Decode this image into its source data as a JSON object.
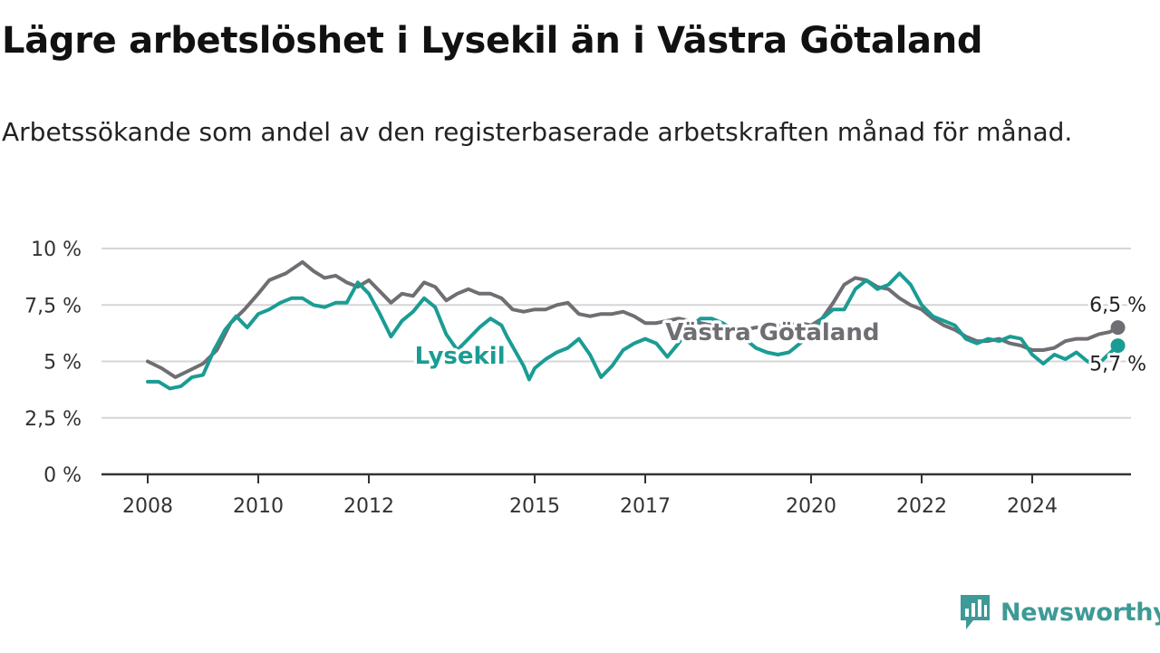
{
  "title": "Lägre arbetslöshet i Lysekil än i Västra Götaland",
  "subtitle": "Arbetssökande som andel av den registerbaserade arbetskraften månad för månad.",
  "brand": {
    "name": "Newsworthy",
    "color": "#3e9a96"
  },
  "chart_data": {
    "type": "line",
    "x_unit": "year",
    "y_unit": "percent",
    "ylim": [
      0,
      10
    ],
    "xlim": [
      2008,
      2025.7
    ],
    "y_ticks": [
      0,
      2.5,
      5,
      7.5,
      10
    ],
    "y_tick_labels": [
      "0 %",
      "2,5 %",
      "5 %",
      "7,5 %",
      "10 %"
    ],
    "x_ticks": [
      2008,
      2010,
      2012,
      2015,
      2017,
      2020,
      2022,
      2024
    ],
    "x_tick_labels": [
      "2008",
      "2010",
      "2012",
      "2015",
      "2017",
      "2020",
      "2022",
      "2024"
    ],
    "grid": "horizontal",
    "series": [
      {
        "name": "Västra Götaland",
        "color": "#6e6e73",
        "end_label": "6,5 %",
        "points": [
          [
            2008.0,
            5.0
          ],
          [
            2008.25,
            4.7
          ],
          [
            2008.5,
            4.3
          ],
          [
            2008.75,
            4.6
          ],
          [
            2009.0,
            4.9
          ],
          [
            2009.25,
            5.5
          ],
          [
            2009.5,
            6.7
          ],
          [
            2009.75,
            7.3
          ],
          [
            2010.0,
            8.0
          ],
          [
            2010.2,
            8.6
          ],
          [
            2010.5,
            8.9
          ],
          [
            2010.8,
            9.4
          ],
          [
            2011.0,
            9.0
          ],
          [
            2011.2,
            8.7
          ],
          [
            2011.4,
            8.8
          ],
          [
            2011.6,
            8.5
          ],
          [
            2011.8,
            8.3
          ],
          [
            2012.0,
            8.6
          ],
          [
            2012.2,
            8.1
          ],
          [
            2012.4,
            7.6
          ],
          [
            2012.6,
            8.0
          ],
          [
            2012.8,
            7.9
          ],
          [
            2013.0,
            8.5
          ],
          [
            2013.2,
            8.3
          ],
          [
            2013.4,
            7.7
          ],
          [
            2013.6,
            8.0
          ],
          [
            2013.8,
            8.2
          ],
          [
            2014.0,
            8.0
          ],
          [
            2014.2,
            8.0
          ],
          [
            2014.4,
            7.8
          ],
          [
            2014.6,
            7.3
          ],
          [
            2014.8,
            7.2
          ],
          [
            2015.0,
            7.3
          ],
          [
            2015.2,
            7.3
          ],
          [
            2015.4,
            7.5
          ],
          [
            2015.6,
            7.6
          ],
          [
            2015.8,
            7.1
          ],
          [
            2016.0,
            7.0
          ],
          [
            2016.2,
            7.1
          ],
          [
            2016.4,
            7.1
          ],
          [
            2016.6,
            7.2
          ],
          [
            2016.8,
            7.0
          ],
          [
            2017.0,
            6.7
          ],
          [
            2017.2,
            6.7
          ],
          [
            2017.4,
            6.8
          ],
          [
            2017.6,
            6.9
          ],
          [
            2017.8,
            6.8
          ],
          [
            2018.0,
            6.7
          ],
          [
            2018.2,
            6.6
          ],
          [
            2018.4,
            6.5
          ],
          [
            2018.6,
            6.4
          ],
          [
            2018.8,
            6.4
          ],
          [
            2019.0,
            6.5
          ],
          [
            2019.2,
            6.5
          ],
          [
            2019.4,
            6.6
          ],
          [
            2019.6,
            6.6
          ],
          [
            2019.8,
            6.7
          ],
          [
            2020.0,
            6.6
          ],
          [
            2020.2,
            6.9
          ],
          [
            2020.4,
            7.6
          ],
          [
            2020.6,
            8.4
          ],
          [
            2020.8,
            8.7
          ],
          [
            2021.0,
            8.6
          ],
          [
            2021.2,
            8.3
          ],
          [
            2021.4,
            8.2
          ],
          [
            2021.6,
            7.8
          ],
          [
            2021.8,
            7.5
          ],
          [
            2022.0,
            7.3
          ],
          [
            2022.2,
            6.9
          ],
          [
            2022.4,
            6.6
          ],
          [
            2022.6,
            6.4
          ],
          [
            2022.8,
            6.1
          ],
          [
            2023.0,
            5.9
          ],
          [
            2023.2,
            5.9
          ],
          [
            2023.4,
            6.0
          ],
          [
            2023.6,
            5.8
          ],
          [
            2023.8,
            5.7
          ],
          [
            2024.0,
            5.5
          ],
          [
            2024.2,
            5.5
          ],
          [
            2024.4,
            5.6
          ],
          [
            2024.6,
            5.9
          ],
          [
            2024.8,
            6.0
          ],
          [
            2025.0,
            6.0
          ],
          [
            2025.2,
            6.2
          ],
          [
            2025.4,
            6.3
          ],
          [
            2025.55,
            6.5
          ]
        ]
      },
      {
        "name": "Lysekil",
        "color": "#1a9c94",
        "end_label": "5,7 %",
        "points": [
          [
            2008.0,
            4.1
          ],
          [
            2008.2,
            4.1
          ],
          [
            2008.4,
            3.8
          ],
          [
            2008.6,
            3.9
          ],
          [
            2008.8,
            4.3
          ],
          [
            2009.0,
            4.4
          ],
          [
            2009.2,
            5.5
          ],
          [
            2009.4,
            6.4
          ],
          [
            2009.6,
            7.0
          ],
          [
            2009.8,
            6.5
          ],
          [
            2010.0,
            7.1
          ],
          [
            2010.2,
            7.3
          ],
          [
            2010.4,
            7.6
          ],
          [
            2010.6,
            7.8
          ],
          [
            2010.8,
            7.8
          ],
          [
            2011.0,
            7.5
          ],
          [
            2011.2,
            7.4
          ],
          [
            2011.4,
            7.6
          ],
          [
            2011.6,
            7.6
          ],
          [
            2011.8,
            8.5
          ],
          [
            2012.0,
            8.0
          ],
          [
            2012.2,
            7.1
          ],
          [
            2012.4,
            6.1
          ],
          [
            2012.6,
            6.8
          ],
          [
            2012.8,
            7.2
          ],
          [
            2013.0,
            7.8
          ],
          [
            2013.2,
            7.4
          ],
          [
            2013.4,
            6.2
          ],
          [
            2013.6,
            5.5
          ],
          [
            2013.8,
            6.0
          ],
          [
            2014.0,
            6.5
          ],
          [
            2014.2,
            6.9
          ],
          [
            2014.4,
            6.6
          ],
          [
            2014.5,
            6.1
          ],
          [
            2014.8,
            4.8
          ],
          [
            2014.9,
            4.2
          ],
          [
            2015.0,
            4.7
          ],
          [
            2015.2,
            5.1
          ],
          [
            2015.4,
            5.4
          ],
          [
            2015.6,
            5.6
          ],
          [
            2015.8,
            6.0
          ],
          [
            2016.0,
            5.3
          ],
          [
            2016.2,
            4.3
          ],
          [
            2016.4,
            4.8
          ],
          [
            2016.6,
            5.5
          ],
          [
            2016.8,
            5.8
          ],
          [
            2017.0,
            6.0
          ],
          [
            2017.2,
            5.8
          ],
          [
            2017.4,
            5.2
          ],
          [
            2017.6,
            5.8
          ],
          [
            2017.8,
            6.5
          ],
          [
            2018.0,
            6.9
          ],
          [
            2018.2,
            6.9
          ],
          [
            2018.4,
            6.7
          ],
          [
            2018.6,
            6.4
          ],
          [
            2018.8,
            6.0
          ],
          [
            2019.0,
            5.6
          ],
          [
            2019.2,
            5.4
          ],
          [
            2019.4,
            5.3
          ],
          [
            2019.6,
            5.4
          ],
          [
            2019.8,
            5.8
          ],
          [
            2020.0,
            6.2
          ],
          [
            2020.2,
            6.9
          ],
          [
            2020.4,
            7.3
          ],
          [
            2020.6,
            7.3
          ],
          [
            2020.8,
            8.2
          ],
          [
            2021.0,
            8.6
          ],
          [
            2021.2,
            8.2
          ],
          [
            2021.4,
            8.4
          ],
          [
            2021.6,
            8.9
          ],
          [
            2021.8,
            8.4
          ],
          [
            2022.0,
            7.5
          ],
          [
            2022.2,
            7.0
          ],
          [
            2022.4,
            6.8
          ],
          [
            2022.6,
            6.6
          ],
          [
            2022.8,
            6.0
          ],
          [
            2023.0,
            5.8
          ],
          [
            2023.2,
            6.0
          ],
          [
            2023.4,
            5.9
          ],
          [
            2023.6,
            6.1
          ],
          [
            2023.8,
            6.0
          ],
          [
            2024.0,
            5.3
          ],
          [
            2024.2,
            4.9
          ],
          [
            2024.4,
            5.3
          ],
          [
            2024.6,
            5.1
          ],
          [
            2024.8,
            5.4
          ],
          [
            2025.0,
            5.0
          ],
          [
            2025.2,
            4.9
          ],
          [
            2025.55,
            5.7
          ]
        ]
      }
    ]
  }
}
